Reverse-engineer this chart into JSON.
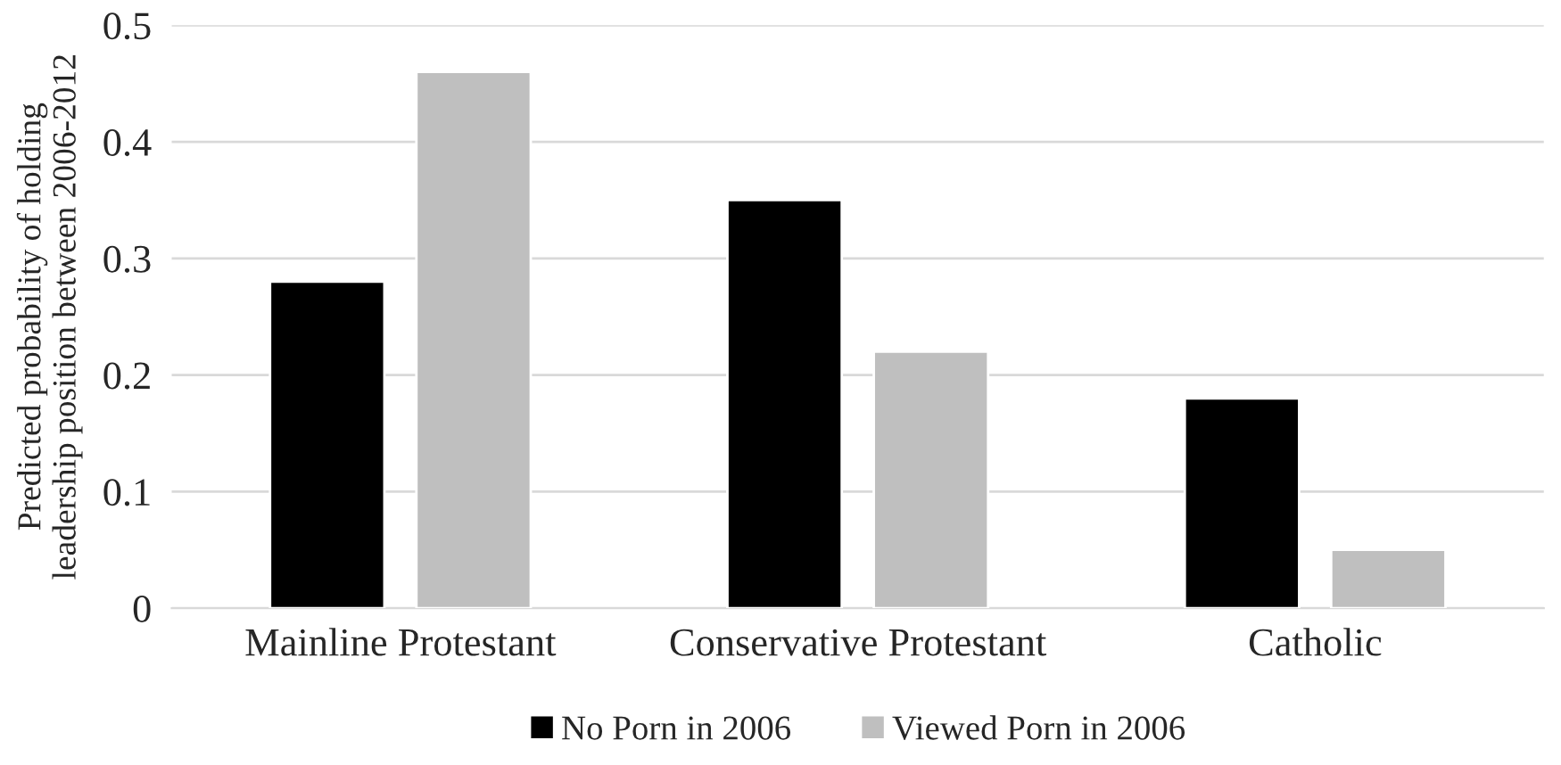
{
  "chart_data": {
    "type": "bar",
    "ylabel": "Predicted probability of holding\nleadership position between 2006-2012",
    "categories": [
      "Mainline Protestant",
      "Conservative Protestant",
      "Catholic"
    ],
    "series": [
      {
        "name": "No Porn in 2006",
        "color": "#000000",
        "values": [
          0.28,
          0.35,
          0.18
        ]
      },
      {
        "name": "Viewed Porn in 2006",
        "color": "#bfbfbf",
        "values": [
          0.46,
          0.22,
          0.05
        ]
      }
    ],
    "ylim": [
      0,
      0.5
    ],
    "yticks": [
      0,
      0.1,
      0.2,
      0.3,
      0.4,
      0.5
    ],
    "grid": "y",
    "legend": "bottom"
  }
}
